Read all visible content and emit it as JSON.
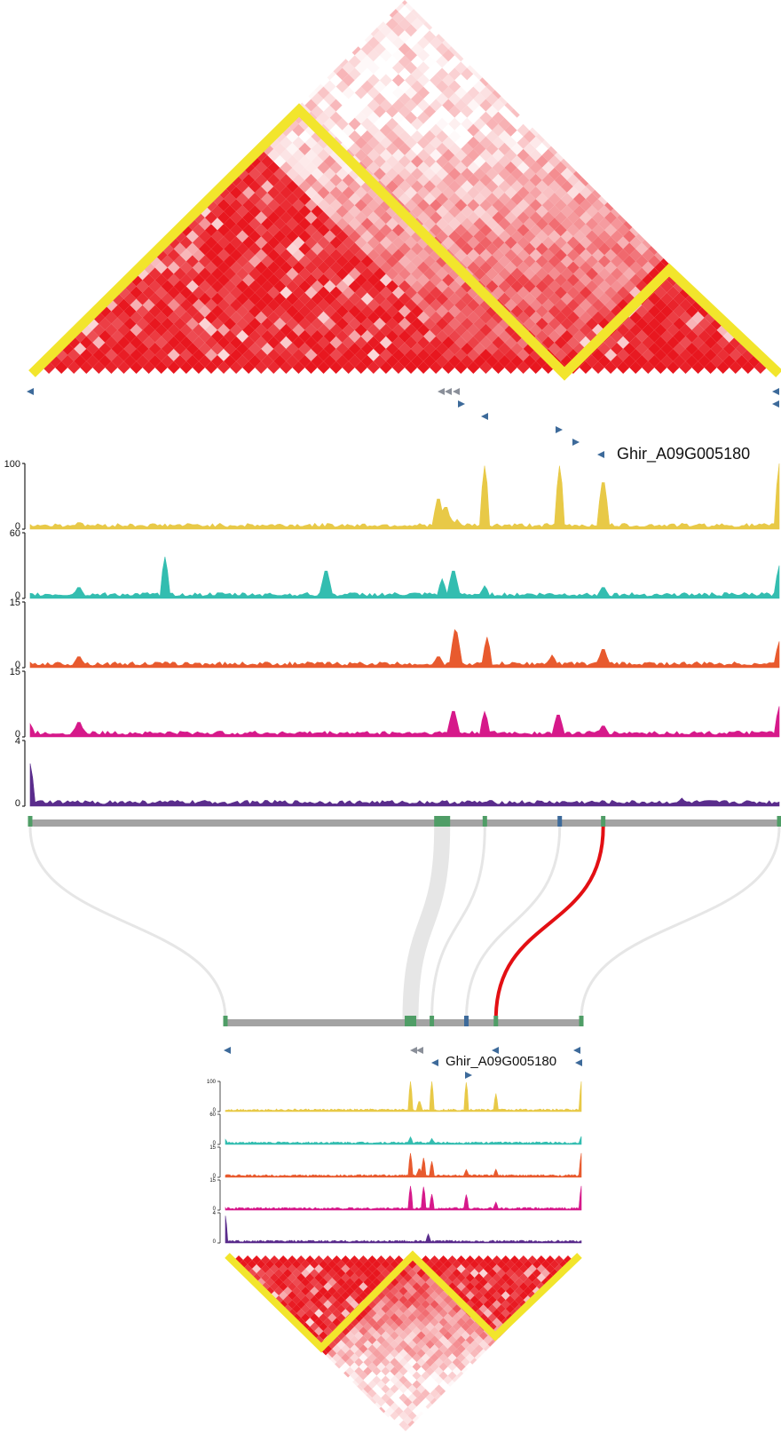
{
  "colors": {
    "hic_high": "#e8171f",
    "hic_low": "#ffffff",
    "tad_boundary": "#f2e52c",
    "gene_marker": "#3d6a9a",
    "gene_marker_alt": "#8a8f99",
    "chromosome_bar": "#a3a3a3",
    "synteny_link": "#e6e6e6",
    "synteny_highlight": "#e30f13",
    "block_green": "#4f9d66",
    "block_blue": "#3d6a9a"
  },
  "top_panel": {
    "gene_label": "Ghir_A09G005180",
    "tracks": [
      {
        "name": "track-1",
        "color": "#e8c947",
        "max_label": "100",
        "min_label": "0",
        "max": 100,
        "peaks": [
          [
            0.065,
            12
          ],
          [
            0.545,
            55
          ],
          [
            0.555,
            40
          ],
          [
            0.56,
            20
          ],
          [
            0.57,
            15
          ],
          [
            0.607,
            100
          ],
          [
            0.707,
            100
          ],
          [
            0.765,
            85
          ],
          [
            1.0,
            100
          ]
        ]
      },
      {
        "name": "track-2",
        "color": "#33bdb0",
        "max_label": "60",
        "min_label": "0",
        "max": 60,
        "peaks": [
          [
            0.065,
            12
          ],
          [
            0.18,
            38
          ],
          [
            0.395,
            30
          ],
          [
            0.55,
            18
          ],
          [
            0.565,
            30
          ],
          [
            0.607,
            12
          ],
          [
            0.765,
            12
          ],
          [
            1.0,
            30
          ]
        ]
      },
      {
        "name": "track-3",
        "color": "#e85a2e",
        "max_label": "15",
        "min_label": "0",
        "max": 15,
        "peaks": [
          [
            0.065,
            3
          ],
          [
            0.545,
            3
          ],
          [
            0.568,
            10
          ],
          [
            0.61,
            7
          ],
          [
            0.697,
            3
          ],
          [
            0.765,
            5
          ],
          [
            1.0,
            6
          ]
        ]
      },
      {
        "name": "track-4",
        "color": "#d6198a",
        "max_label": "15",
        "min_label": "0",
        "max": 15,
        "peaks": [
          [
            0.0,
            3
          ],
          [
            0.065,
            4
          ],
          [
            0.565,
            7
          ],
          [
            0.607,
            6
          ],
          [
            0.705,
            6
          ],
          [
            0.765,
            3
          ],
          [
            1.0,
            7
          ]
        ]
      },
      {
        "name": "track-5",
        "color": "#5a2c8c",
        "max_label": "4",
        "min_label": "0",
        "max": 4,
        "peaks": [
          [
            0.0,
            2.6
          ],
          [
            0.87,
            0.5
          ]
        ]
      }
    ]
  },
  "bottom_panel": {
    "gene_label": "Ghir_A09G005180",
    "tracks": [
      {
        "name": "track-1",
        "color": "#e8c947",
        "max_label": "100",
        "min_label": "0",
        "max": 100,
        "peaks": [
          [
            0.52,
            100
          ],
          [
            0.545,
            40
          ],
          [
            0.58,
            100
          ],
          [
            0.677,
            100
          ],
          [
            0.76,
            60
          ],
          [
            1.0,
            100
          ]
        ]
      },
      {
        "name": "track-2",
        "color": "#33bdb0",
        "max_label": "60",
        "min_label": "0",
        "max": 60,
        "peaks": [
          [
            0.0,
            10
          ],
          [
            0.52,
            15
          ],
          [
            0.58,
            12
          ],
          [
            1.0,
            16
          ]
        ]
      },
      {
        "name": "track-3",
        "color": "#e85a2e",
        "max_label": "15",
        "min_label": "0",
        "max": 15,
        "peaks": [
          [
            0.52,
            12
          ],
          [
            0.545,
            5
          ],
          [
            0.557,
            10
          ],
          [
            0.58,
            8
          ],
          [
            0.677,
            4
          ],
          [
            0.76,
            4
          ],
          [
            1.0,
            12
          ]
        ]
      },
      {
        "name": "track-4",
        "color": "#d6198a",
        "max_label": "15",
        "min_label": "0",
        "max": 15,
        "peaks": [
          [
            0.52,
            12
          ],
          [
            0.557,
            12
          ],
          [
            0.58,
            8
          ],
          [
            0.677,
            8
          ],
          [
            0.76,
            4
          ],
          [
            1.0,
            12
          ]
        ]
      },
      {
        "name": "track-5",
        "color": "#5a2c8c",
        "max_label": "4",
        "min_label": "0",
        "max": 4,
        "peaks": [
          [
            0.0,
            3.6
          ],
          [
            0.57,
            1.2
          ]
        ]
      }
    ]
  },
  "synteny": {
    "top_positions": [
      0.0,
      0.55,
      0.607,
      0.707,
      0.765,
      1.0
    ],
    "bottom_positions": [
      0.0,
      0.52,
      0.58,
      0.677,
      0.76,
      1.0
    ],
    "highlighted_index": 4
  }
}
